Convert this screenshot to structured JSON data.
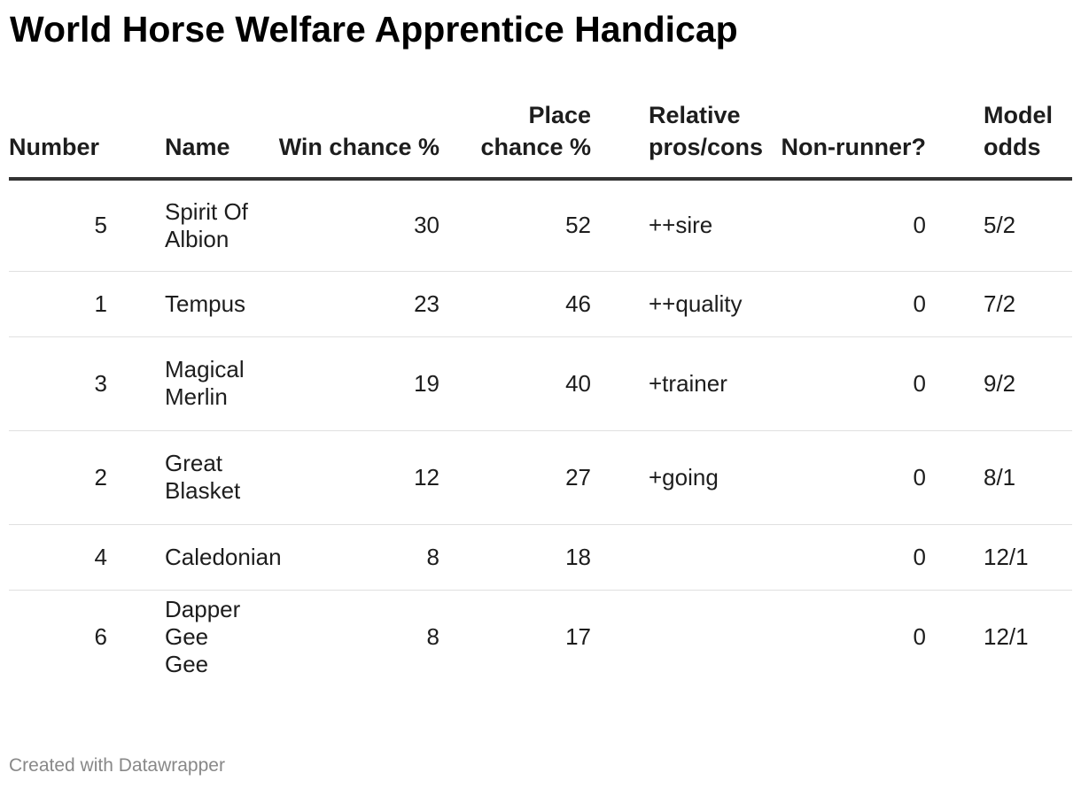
{
  "title": "World Horse Welfare Apprentice Handicap",
  "footer": "Created with Datawrapper",
  "chart_data": {
    "type": "table",
    "title": "World Horse Welfare Apprentice Handicap",
    "columns": [
      "Number",
      "Name",
      "Win chance %",
      "Place chance %",
      "Relative pros/cons",
      "Non-runner?",
      "Model odds"
    ],
    "rows": [
      {
        "number": "5",
        "name": "Spirit Of Albion",
        "win": "30",
        "place": "52",
        "pros": "++sire",
        "nr": "0",
        "odds": "5/2"
      },
      {
        "number": "1",
        "name": "Tempus",
        "win": "23",
        "place": "46",
        "pros": "++quality",
        "nr": "0",
        "odds": "7/2"
      },
      {
        "number": "3",
        "name": "Magical Merlin",
        "win": "19",
        "place": "40",
        "pros": "+trainer",
        "nr": "0",
        "odds": "9/2"
      },
      {
        "number": "2",
        "name": "Great Blasket",
        "win": "12",
        "place": "27",
        "pros": "+going",
        "nr": "0",
        "odds": "8/1"
      },
      {
        "number": "4",
        "name": "Caledonian",
        "win": "8",
        "place": "18",
        "pros": "",
        "nr": "0",
        "odds": "12/1"
      },
      {
        "number": "6",
        "name": "Dapper Gee Gee",
        "win": "8",
        "place": "17",
        "pros": "",
        "nr": "0",
        "odds": "12/1"
      }
    ]
  }
}
